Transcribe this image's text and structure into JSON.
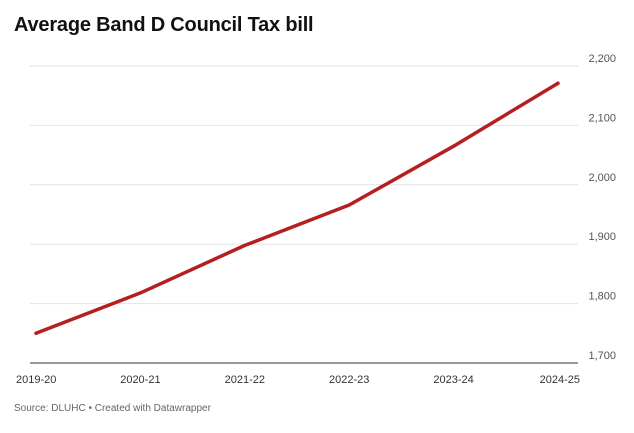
{
  "title": "Average Band D Council Tax bill",
  "source": "Source: DLUHC • Created with Datawrapper",
  "colors": {
    "line": "#b41f1f",
    "grid": "#e2e2e2",
    "axis": "#333333"
  },
  "chart_data": {
    "type": "line",
    "title": "Average Band D Council Tax bill",
    "xlabel": "",
    "ylabel": "",
    "categories": [
      "2019-20",
      "2020-21",
      "2021-22",
      "2022-23",
      "2023-24",
      "2024-25"
    ],
    "series": [
      {
        "values": [
          1750,
          1818,
          1898,
          1966,
          2065,
          2171
        ]
      }
    ],
    "yticks": [
      1700,
      1800,
      1900,
      2000,
      2100,
      2200
    ],
    "ytick_labels": [
      "1,700",
      "1,800",
      "1,900",
      "2,000",
      "2,100",
      "2,200"
    ],
    "ylim": [
      1700,
      2200
    ],
    "grid": true,
    "y_axis_side": "right"
  }
}
